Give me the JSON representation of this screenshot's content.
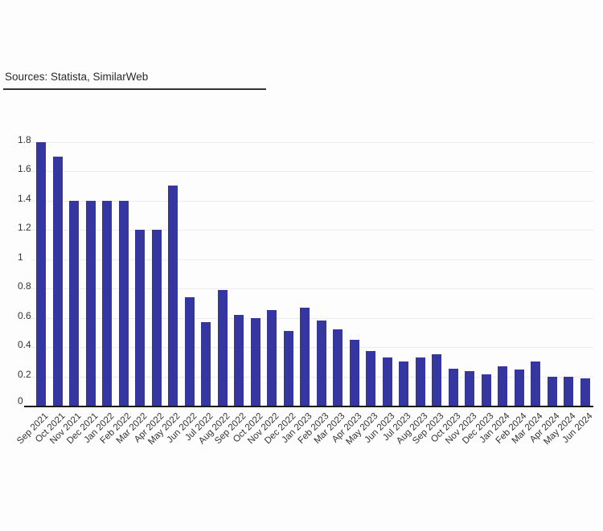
{
  "header": {
    "source": "Sources: Statista, SimilarWeb"
  },
  "chart_data": {
    "type": "bar",
    "title": "",
    "xlabel": "",
    "ylabel": "",
    "ylim": [
      0,
      1.8
    ],
    "yticks": [
      "0",
      "0.2",
      "0.4",
      "0.6",
      "0.8",
      "1",
      "1.2",
      "1.4",
      "1.6",
      "1.8"
    ],
    "grid": true,
    "legend": null,
    "bar_color": "#3636a0",
    "categories": [
      "Sep 2021",
      "Oct 2021",
      "Nov 2021",
      "Dec 2021",
      "Jan 2022",
      "Feb 2022",
      "Mar 2022",
      "Apr 2022",
      "May 2022",
      "Jun 2022",
      "Jul 2022",
      "Aug 2022",
      "Sep 2022",
      "Oct 2022",
      "Nov 2022",
      "Dec 2022",
      "Jan 2023",
      "Feb 2023",
      "Mar 2023",
      "Apr 2023",
      "May 2023",
      "Jun 2023",
      "Jul 2023",
      "Aug 2023",
      "Sep 2023",
      "Oct 2023",
      "Nov 2023",
      "Dec 2023",
      "Jan 2024",
      "Feb 2024",
      "Mar 2024",
      "Apr 2024",
      "May 2024",
      "Jun 2024"
    ],
    "values": [
      1.8,
      1.7,
      1.4,
      1.4,
      1.4,
      1.4,
      1.2,
      1.2,
      1.5,
      0.74,
      0.57,
      0.79,
      0.62,
      0.6,
      0.65,
      0.51,
      0.67,
      0.58,
      0.52,
      0.45,
      0.37,
      0.33,
      0.3,
      0.33,
      0.35,
      0.25,
      0.235,
      0.215,
      0.27,
      0.245,
      0.3,
      0.2,
      0.2,
      0.185
    ]
  }
}
